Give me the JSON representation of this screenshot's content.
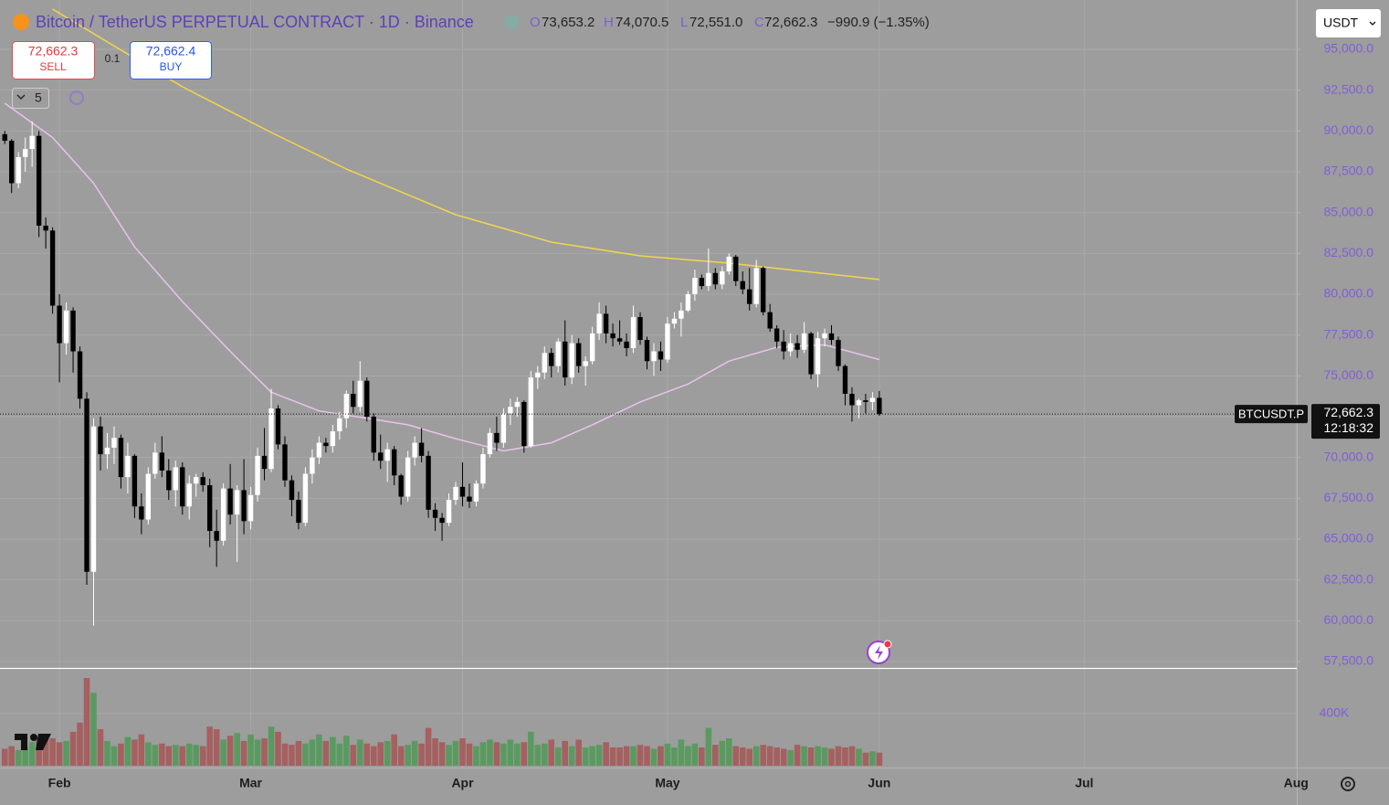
{
  "chart_data": {
    "type": "candlestick",
    "title": "Bitcoin / TetherUS PERPETUAL CONTRACT · 1D · Binance",
    "ohlc_legend": {
      "letters": [
        "O",
        "H",
        "L",
        "C"
      ],
      "values": [
        73653.2,
        74070.5,
        72551.0,
        72662.3
      ],
      "value_labels": [
        "73,653.2",
        "74,070.5",
        "72,551.0",
        "72,662.3"
      ],
      "change": "−990.9 (−1.35%)"
    },
    "sell": {
      "price": "72,662.3",
      "label": "SELL"
    },
    "quantity": "0.1",
    "buy": {
      "price": "72,662.4",
      "label": "BUY"
    },
    "indicator_count": "5",
    "currency": "USDT",
    "symbol": "BTCUSDT.P",
    "last_price": {
      "value": 72662.3,
      "label": "72,662.3"
    },
    "countdown": "12:18:32",
    "up_color": "#ffffff",
    "down_color": "#000000",
    "ohlc": [
      [
        89800,
        90000,
        89200,
        89400
      ],
      [
        89400,
        89500,
        86200,
        86800
      ],
      [
        86800,
        88700,
        86500,
        88400
      ],
      [
        88400,
        89600,
        87500,
        88900
      ],
      [
        88900,
        90600,
        87800,
        89700
      ],
      [
        89700,
        90000,
        83500,
        84200
      ],
      [
        84200,
        84700,
        82800,
        83900
      ],
      [
        83900,
        84100,
        78800,
        79300
      ],
      [
        79300,
        80000,
        74600,
        77000
      ],
      [
        77000,
        79500,
        76300,
        79000
      ],
      [
        79000,
        79200,
        75200,
        76500
      ],
      [
        76500,
        76800,
        73000,
        73600
      ],
      [
        73600,
        74000,
        62200,
        63000
      ],
      [
        63000,
        72400,
        59700,
        71900
      ],
      [
        71900,
        72500,
        69200,
        70200
      ],
      [
        70200,
        71500,
        69300,
        70600
      ],
      [
        70600,
        71900,
        69600,
        71200
      ],
      [
        71200,
        71400,
        68100,
        68800
      ],
      [
        68800,
        70900,
        67800,
        70100
      ],
      [
        70100,
        70200,
        66300,
        67000
      ],
      [
        67000,
        67800,
        65300,
        66200
      ],
      [
        66200,
        69400,
        65900,
        69000
      ],
      [
        69000,
        70900,
        68700,
        70300
      ],
      [
        70300,
        71300,
        68800,
        69200
      ],
      [
        69200,
        69900,
        67400,
        68000
      ],
      [
        68000,
        69800,
        67000,
        69400
      ],
      [
        69400,
        69700,
        66500,
        67000
      ],
      [
        67000,
        68900,
        66200,
        68400
      ],
      [
        68400,
        69000,
        67600,
        68800
      ],
      [
        68800,
        69100,
        67900,
        68300
      ],
      [
        68300,
        68700,
        64500,
        65500
      ],
      [
        65500,
        66800,
        63300,
        64900
      ],
      [
        64900,
        68400,
        64600,
        68100
      ],
      [
        68100,
        69600,
        65900,
        66500
      ],
      [
        66500,
        68300,
        63600,
        68000
      ],
      [
        68000,
        69900,
        65300,
        66100
      ],
      [
        66100,
        68200,
        65600,
        67700
      ],
      [
        67700,
        70600,
        67300,
        70100
      ],
      [
        70100,
        71800,
        68600,
        69300
      ],
      [
        69300,
        74200,
        69100,
        73000
      ],
      [
        73000,
        73200,
        70500,
        70800
      ],
      [
        70800,
        71300,
        68200,
        68600
      ],
      [
        68600,
        68900,
        66400,
        67400
      ],
      [
        67400,
        67900,
        65600,
        66000
      ],
      [
        66000,
        69400,
        65800,
        69000
      ],
      [
        69000,
        70500,
        68400,
        70000
      ],
      [
        70000,
        71300,
        69600,
        70900
      ],
      [
        70900,
        71200,
        70300,
        70700
      ],
      [
        70700,
        72000,
        70300,
        71600
      ],
      [
        71600,
        72800,
        71100,
        72400
      ],
      [
        72400,
        74100,
        71800,
        73900
      ],
      [
        73900,
        74700,
        72700,
        73100
      ],
      [
        73100,
        75900,
        72800,
        74700
      ],
      [
        74700,
        74900,
        72200,
        72500
      ],
      [
        72500,
        72700,
        69800,
        70300
      ],
      [
        70300,
        71400,
        69300,
        69800
      ],
      [
        69800,
        70900,
        68500,
        70500
      ],
      [
        70500,
        70700,
        68300,
        68900
      ],
      [
        68900,
        69000,
        67100,
        67600
      ],
      [
        67600,
        70400,
        67300,
        70000
      ],
      [
        70000,
        71300,
        69500,
        70900
      ],
      [
        70900,
        71800,
        69700,
        70100
      ],
      [
        70100,
        70400,
        66300,
        66800
      ],
      [
        66800,
        67200,
        65500,
        66300
      ],
      [
        66300,
        66600,
        64900,
        66000
      ],
      [
        66000,
        67800,
        65800,
        67400
      ],
      [
        67400,
        68500,
        67100,
        68200
      ],
      [
        68200,
        69700,
        67000,
        67600
      ],
      [
        67600,
        68400,
        66900,
        67300
      ],
      [
        67300,
        68600,
        67000,
        68400
      ],
      [
        68400,
        70600,
        68100,
        70200
      ],
      [
        70200,
        71800,
        70000,
        71500
      ],
      [
        71500,
        72500,
        70400,
        70900
      ],
      [
        70900,
        73000,
        70600,
        72700
      ],
      [
        72700,
        73600,
        72000,
        73100
      ],
      [
        73100,
        73700,
        72500,
        73400
      ],
      [
        73400,
        73500,
        70300,
        70700
      ],
      [
        70700,
        75300,
        70600,
        74900
      ],
      [
        74900,
        75600,
        74200,
        75200
      ],
      [
        75200,
        76800,
        74800,
        76400
      ],
      [
        76400,
        76700,
        74900,
        75600
      ],
      [
        75600,
        77300,
        75200,
        77100
      ],
      [
        77100,
        78400,
        74400,
        74900
      ],
      [
        74900,
        77500,
        74500,
        77000
      ],
      [
        77000,
        77300,
        75200,
        75600
      ],
      [
        75600,
        76200,
        74400,
        75900
      ],
      [
        75900,
        78000,
        75700,
        77600
      ],
      [
        77600,
        79500,
        77200,
        78800
      ],
      [
        78800,
        79300,
        77000,
        77600
      ],
      [
        77600,
        78200,
        76800,
        77300
      ],
      [
        77300,
        78400,
        76900,
        77100
      ],
      [
        77100,
        77600,
        76200,
        76700
      ],
      [
        76700,
        79300,
        76400,
        78600
      ],
      [
        78600,
        78900,
        76900,
        77200
      ],
      [
        77200,
        77400,
        75400,
        75900
      ],
      [
        75900,
        77000,
        75000,
        76500
      ],
      [
        76500,
        77100,
        75300,
        76000
      ],
      [
        76000,
        78600,
        75800,
        78200
      ],
      [
        78200,
        78900,
        77900,
        78500
      ],
      [
        78500,
        79500,
        77400,
        79000
      ],
      [
        79000,
        80200,
        78900,
        80000
      ],
      [
        80000,
        81500,
        79600,
        81000
      ],
      [
        81000,
        81200,
        80300,
        80500
      ],
      [
        80500,
        82800,
        80200,
        81300
      ],
      [
        81300,
        81600,
        80300,
        80600
      ],
      [
        80600,
        81700,
        80300,
        81400
      ],
      [
        81400,
        82500,
        81200,
        82300
      ],
      [
        82300,
        82400,
        80500,
        80800
      ],
      [
        80800,
        81400,
        80000,
        80300
      ],
      [
        80300,
        81600,
        79000,
        79400
      ],
      [
        79400,
        82100,
        79200,
        81600
      ],
      [
        81600,
        81700,
        78700,
        78900
      ],
      [
        78900,
        79400,
        77700,
        77900
      ],
      [
        77900,
        78100,
        76700,
        77100
      ],
      [
        77100,
        77800,
        76000,
        76500
      ],
      [
        76500,
        77600,
        76200,
        77000
      ],
      [
        77000,
        77500,
        76100,
        76600
      ],
      [
        76600,
        78300,
        76400,
        77600
      ],
      [
        77600,
        77700,
        74800,
        75100
      ],
      [
        75100,
        77700,
        74300,
        77300
      ],
      [
        77300,
        77900,
        76800,
        77600
      ],
      [
        77600,
        78100,
        76900,
        77200
      ],
      [
        77200,
        77400,
        75300,
        75600
      ],
      [
        75600,
        75700,
        73200,
        73900
      ],
      [
        73900,
        74300,
        72200,
        73200
      ],
      [
        73200,
        73600,
        72400,
        73500
      ],
      [
        73500,
        73900,
        72700,
        73400
      ],
      [
        73400,
        74000,
        72900,
        73653
      ],
      [
        73653.2,
        74070.5,
        72551.0,
        72662.3
      ]
    ],
    "overlays": [
      {
        "color": "#f2d64b",
        "x": [
          7,
          26,
          39,
          50,
          66,
          80,
          93,
          106,
          128
        ],
        "values": [
          97460,
          92705,
          89907,
          87668,
          84870,
          83190,
          82350,
          81900,
          80900
        ]
      },
      {
        "color": "#e8c3ea",
        "x": [
          0,
          7,
          13,
          19,
          26,
          33,
          39,
          46,
          53,
          59,
          66,
          73,
          80,
          86,
          93,
          100,
          106,
          113,
          120,
          128
        ],
        "values": [
          91700,
          89600,
          86800,
          82900,
          79550,
          76500,
          74000,
          72850,
          72400,
          72000,
          71150,
          70400,
          70900,
          72000,
          73400,
          74500,
          75900,
          76750,
          76900,
          76000
        ]
      }
    ],
    "volume": {
      "up_color": "#5a9a60",
      "down_color": "#a5605f",
      "ylim": [
        0,
        750000
      ],
      "yticks": [
        {
          "value": 400000,
          "label": "400K"
        }
      ],
      "values": [
        130000,
        150000,
        120000,
        140000,
        180000,
        220000,
        200000,
        210000,
        180000,
        190000,
        260000,
        330000,
        673000,
        560000,
        280000,
        190000,
        150000,
        170000,
        220000,
        200000,
        240000,
        180000,
        160000,
        170000,
        150000,
        160000,
        150000,
        170000,
        160000,
        150000,
        300000,
        280000,
        200000,
        230000,
        250000,
        190000,
        240000,
        200000,
        210000,
        300000,
        260000,
        170000,
        160000,
        190000,
        170000,
        200000,
        240000,
        190000,
        220000,
        170000,
        230000,
        160000,
        200000,
        170000,
        150000,
        180000,
        190000,
        240000,
        150000,
        160000,
        190000,
        170000,
        290000,
        210000,
        180000,
        160000,
        190000,
        210000,
        170000,
        150000,
        180000,
        200000,
        180000,
        170000,
        200000,
        170000,
        180000,
        260000,
        160000,
        170000,
        200000,
        140000,
        190000,
        150000,
        200000,
        140000,
        150000,
        160000,
        180000,
        140000,
        140000,
        150000,
        150000,
        160000,
        150000,
        130000,
        150000,
        170000,
        140000,
        200000,
        150000,
        170000,
        140000,
        290000,
        160000,
        190000,
        210000,
        150000,
        140000,
        130000,
        150000,
        160000,
        150000,
        140000,
        130000,
        120000,
        160000,
        150000,
        140000,
        150000,
        140000,
        130000,
        150000,
        140000,
        150000,
        130000,
        100000,
        110000,
        100000
      ]
    },
    "xlim": [
      -0.7,
      189.1
    ],
    "xticks": [
      {
        "value": 8,
        "label": "Feb"
      },
      {
        "value": 36,
        "label": "Mar"
      },
      {
        "value": 67,
        "label": "Apr"
      },
      {
        "value": 97,
        "label": "May"
      },
      {
        "value": 128,
        "label": "Jun"
      },
      {
        "value": 158,
        "label": "Jul"
      },
      {
        "value": 189,
        "label": "Aug"
      }
    ],
    "ylim": [
      57108,
      98022
    ],
    "yticks": [
      {
        "value": 57500,
        "label": "57,500.0"
      },
      {
        "value": 60000,
        "label": "60,000.0"
      },
      {
        "value": 62500,
        "label": "62,500.0"
      },
      {
        "value": 65000,
        "label": "65,000.0"
      },
      {
        "value": 67500,
        "label": "67,500.0"
      },
      {
        "value": 70000,
        "label": "70,000.0"
      },
      {
        "value": 72500,
        "label": "72,500.0"
      },
      {
        "value": 75000,
        "label": "75,000.0"
      },
      {
        "value": 77500,
        "label": "77,500.0"
      },
      {
        "value": 80000,
        "label": "80,000.0"
      },
      {
        "value": 82500,
        "label": "82,500.0"
      },
      {
        "value": 85000,
        "label": "85,000.0"
      },
      {
        "value": 87500,
        "label": "87,500.0"
      },
      {
        "value": 90000,
        "label": "90,000.0"
      },
      {
        "value": 92500,
        "label": "92,500.0"
      },
      {
        "value": 95000,
        "label": "95,000.0"
      }
    ],
    "grid": true
  }
}
